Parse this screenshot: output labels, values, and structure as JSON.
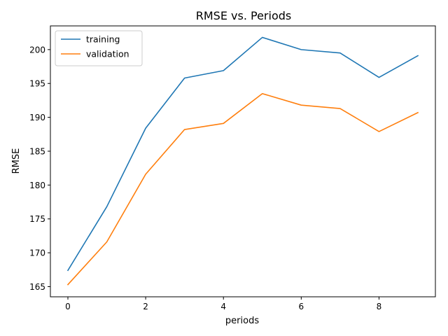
{
  "chart_data": {
    "type": "line",
    "title": "RMSE vs. Periods",
    "xlabel": "periods",
    "ylabel": "RMSE",
    "x": [
      0,
      1,
      2,
      3,
      4,
      5,
      6,
      7,
      8,
      9
    ],
    "series": [
      {
        "name": "training",
        "color": "#1f77b4",
        "values": [
          167.4,
          176.8,
          188.4,
          195.8,
          196.9,
          201.8,
          200.0,
          199.5,
          195.9,
          199.1
        ]
      },
      {
        "name": "validation",
        "color": "#ff7f0e",
        "values": [
          165.3,
          171.6,
          181.6,
          188.2,
          189.1,
          193.5,
          191.8,
          191.3,
          187.9,
          190.7
        ]
      }
    ],
    "xlim": [
      -0.45,
      9.45
    ],
    "ylim": [
      163.5,
      203.5
    ],
    "xticks": [
      "0",
      "2",
      "4",
      "6",
      "8"
    ],
    "yticks": [
      "165",
      "170",
      "175",
      "180",
      "185",
      "190",
      "195",
      "200"
    ],
    "grid": false,
    "legend_position": "top-left"
  }
}
